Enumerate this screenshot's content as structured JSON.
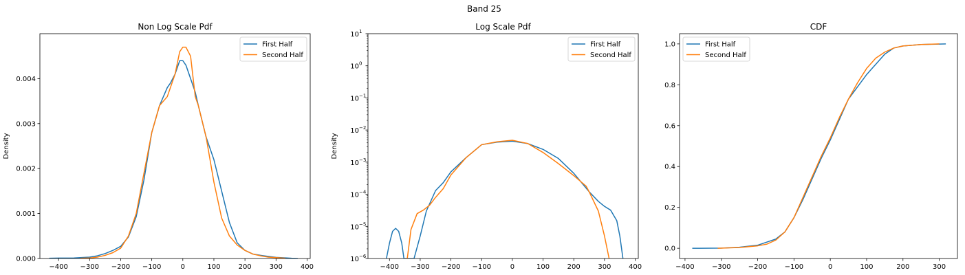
{
  "suptitle": "Band 25",
  "colors": {
    "first": "#1f77b4",
    "second": "#ff7f0e"
  },
  "chart_data": [
    {
      "type": "line",
      "title": "Non Log Scale Pdf",
      "xlabel": "",
      "ylabel": "Density",
      "xlim": [
        -460,
        410
      ],
      "ylim": [
        0,
        0.005
      ],
      "yscale": "linear",
      "xticks": [
        -400,
        -300,
        -200,
        -100,
        0,
        100,
        200,
        300,
        400
      ],
      "yticks": [
        0.0,
        0.001,
        0.002,
        0.003,
        0.004
      ],
      "ytick_labels": [
        "0.000",
        "0.001",
        "0.002",
        "0.003",
        "0.004"
      ],
      "legend_position": "upper right",
      "series": [
        {
          "name": "First Half",
          "color": "#1f77b4",
          "x": [
            -430,
            -400,
            -350,
            -300,
            -275,
            -250,
            -225,
            -200,
            -175,
            -150,
            -125,
            -100,
            -75,
            -50,
            -40,
            -25,
            -10,
            0,
            10,
            25,
            40,
            50,
            75,
            100,
            125,
            150,
            175,
            200,
            225,
            250,
            300,
            350,
            370
          ],
          "y": [
            5e-06,
            1e-05,
            1.2e-05,
            3e-05,
            6e-05,
            0.00011,
            0.00018,
            0.00027,
            0.00048,
            0.00093,
            0.00175,
            0.0028,
            0.0034,
            0.0038,
            0.0039,
            0.0041,
            0.0044,
            0.0044,
            0.0043,
            0.004,
            0.0037,
            0.0034,
            0.0027,
            0.0022,
            0.0015,
            0.0008,
            0.00035,
            0.00018,
            0.0001,
            7e-05,
            2.5e-05,
            5e-06,
            2e-06
          ]
        },
        {
          "name": "Second Half",
          "color": "#ff7f0e",
          "x": [
            -330,
            -300,
            -275,
            -250,
            -225,
            -200,
            -175,
            -150,
            -125,
            -100,
            -75,
            -50,
            -25,
            -10,
            0,
            10,
            25,
            40,
            50,
            75,
            100,
            125,
            150,
            175,
            200,
            225,
            250,
            275,
            300,
            330
          ],
          "y": [
            5e-06,
            1e-05,
            3e-05,
            7e-05,
            0.00013,
            0.00023,
            0.0005,
            0.001,
            0.0019,
            0.0028,
            0.0034,
            0.0036,
            0.0041,
            0.0046,
            0.0047,
            0.0047,
            0.0045,
            0.0036,
            0.0034,
            0.0027,
            0.0017,
            0.0009,
            0.0005,
            0.0003,
            0.00018,
            0.0001,
            6e-05,
            3e-05,
            2e-05,
            5e-06
          ]
        }
      ]
    },
    {
      "type": "line",
      "title": "Log Scale Pdf",
      "xlabel": "",
      "ylabel": "Density",
      "xlim": [
        -470,
        410
      ],
      "ylim": [
        1e-06,
        10
      ],
      "yscale": "log",
      "xticks": [
        -400,
        -300,
        -200,
        -100,
        0,
        100,
        200,
        300,
        400
      ],
      "yticks": [
        1e-06,
        1e-05,
        0.0001,
        0.001,
        0.01,
        0.1,
        1,
        10
      ],
      "ytick_labels": [
        [
          "10",
          "-6"
        ],
        [
          "10",
          "-5"
        ],
        [
          "10",
          "-4"
        ],
        [
          "10",
          "-3"
        ],
        [
          "10",
          "-2"
        ],
        [
          "10",
          "-1"
        ],
        [
          "10",
          "0"
        ],
        [
          "10",
          "1"
        ]
      ],
      "legend_position": "upper right",
      "series": [
        {
          "name": "First Half",
          "color": "#1f77b4",
          "x": [
            -410,
            -400,
            -390,
            -380,
            -370,
            -360,
            -353,
            -340,
            -330,
            -320,
            -300,
            -280,
            -250,
            -225,
            -200,
            -150,
            -100,
            -50,
            0,
            50,
            100,
            150,
            200,
            250,
            280,
            300,
            320,
            340,
            350,
            360
          ],
          "y": [
            1e-06,
            3e-06,
            7e-06,
            8.7e-06,
            7e-06,
            3e-06,
            1e-06,
            1e-06,
            1e-06,
            1e-06,
            5e-06,
            3e-05,
            0.00013,
            0.00023,
            0.0005,
            0.0014,
            0.0035,
            0.0042,
            0.0045,
            0.0038,
            0.0025,
            0.0013,
            0.00045,
            0.00012,
            6e-05,
            4.2e-05,
            3.2e-05,
            1.5e-05,
            5e-06,
            1e-06
          ]
        },
        {
          "name": "Second Half",
          "color": "#ff7f0e",
          "x": [
            -342,
            -330,
            -310,
            -290,
            -270,
            -250,
            -225,
            -200,
            -150,
            -100,
            -50,
            0,
            50,
            100,
            150,
            200,
            240,
            250,
            280,
            300,
            315
          ],
          "y": [
            1e-06,
            8e-06,
            2.5e-05,
            3.2e-05,
            4.5e-05,
            8e-05,
            0.00015,
            0.0004,
            0.0014,
            0.0035,
            0.0043,
            0.0048,
            0.0038,
            0.002,
            0.0009,
            0.00038,
            0.00018,
            0.00012,
            3e-05,
            5e-06,
            1e-06
          ]
        }
      ]
    },
    {
      "type": "line",
      "title": "CDF",
      "xlabel": "",
      "ylabel": "",
      "xlim": [
        -415,
        350
      ],
      "ylim": [
        -0.05,
        1.05
      ],
      "yscale": "linear",
      "xticks": [
        -400,
        -300,
        -200,
        -100,
        0,
        100,
        200,
        300
      ],
      "yticks": [
        0.0,
        0.2,
        0.4,
        0.6,
        0.8,
        1.0
      ],
      "ytick_labels": [
        "0.0",
        "0.2",
        "0.4",
        "0.6",
        "0.8",
        "1.0"
      ],
      "legend_position": "upper left",
      "series": [
        {
          "name": "First Half",
          "color": "#1f77b4",
          "x": [
            -380,
            -300,
            -250,
            -200,
            -175,
            -150,
            -125,
            -100,
            -75,
            -50,
            -25,
            0,
            25,
            50,
            75,
            100,
            125,
            150,
            175,
            200,
            250,
            300,
            318
          ],
          "y": [
            0.0,
            0.001,
            0.005,
            0.015,
            0.03,
            0.045,
            0.08,
            0.15,
            0.24,
            0.34,
            0.44,
            0.53,
            0.63,
            0.73,
            0.79,
            0.85,
            0.9,
            0.95,
            0.98,
            0.99,
            0.997,
            0.999,
            1.0
          ]
        },
        {
          "name": "Second Half",
          "color": "#ff7f0e",
          "x": [
            -310,
            -250,
            -200,
            -175,
            -150,
            -125,
            -100,
            -75,
            -50,
            -25,
            0,
            25,
            50,
            75,
            100,
            125,
            150,
            175,
            200,
            250,
            300
          ],
          "y": [
            0.0,
            0.004,
            0.012,
            0.02,
            0.04,
            0.08,
            0.15,
            0.25,
            0.35,
            0.45,
            0.54,
            0.64,
            0.73,
            0.81,
            0.88,
            0.93,
            0.96,
            0.98,
            0.99,
            0.997,
            1.0
          ]
        }
      ]
    }
  ]
}
